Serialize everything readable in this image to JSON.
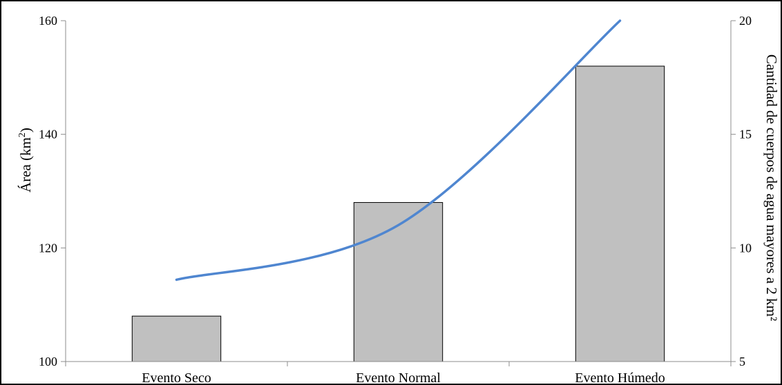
{
  "chart_data": {
    "type": "bar",
    "categories": [
      "Evento Seco",
      "Evento Normal",
      "Evento Húmedo"
    ],
    "series": [
      {
        "kind": "bar",
        "axis": "left",
        "values": [
          108,
          128,
          152
        ]
      },
      {
        "kind": "line",
        "axis": "right",
        "smooth": true,
        "values": [
          8.6,
          11.0,
          20.0
        ]
      }
    ],
    "ylabel_left": {
      "text": "Área (km",
      "sup": "2",
      "suffix": ")"
    },
    "ylabel_right": "Cantidad de cuerpos de agua mayores a 2 km²",
    "ylim_left": [
      100,
      160
    ],
    "yticks_left": [
      100,
      120,
      140,
      160
    ],
    "ylim_right": [
      5,
      20
    ],
    "yticks_right": [
      5,
      10,
      15,
      20
    ],
    "grid": false,
    "colors": {
      "bar": "#c0c0c0",
      "line": "#4f86d0",
      "axis": "#8c8c8c"
    }
  }
}
